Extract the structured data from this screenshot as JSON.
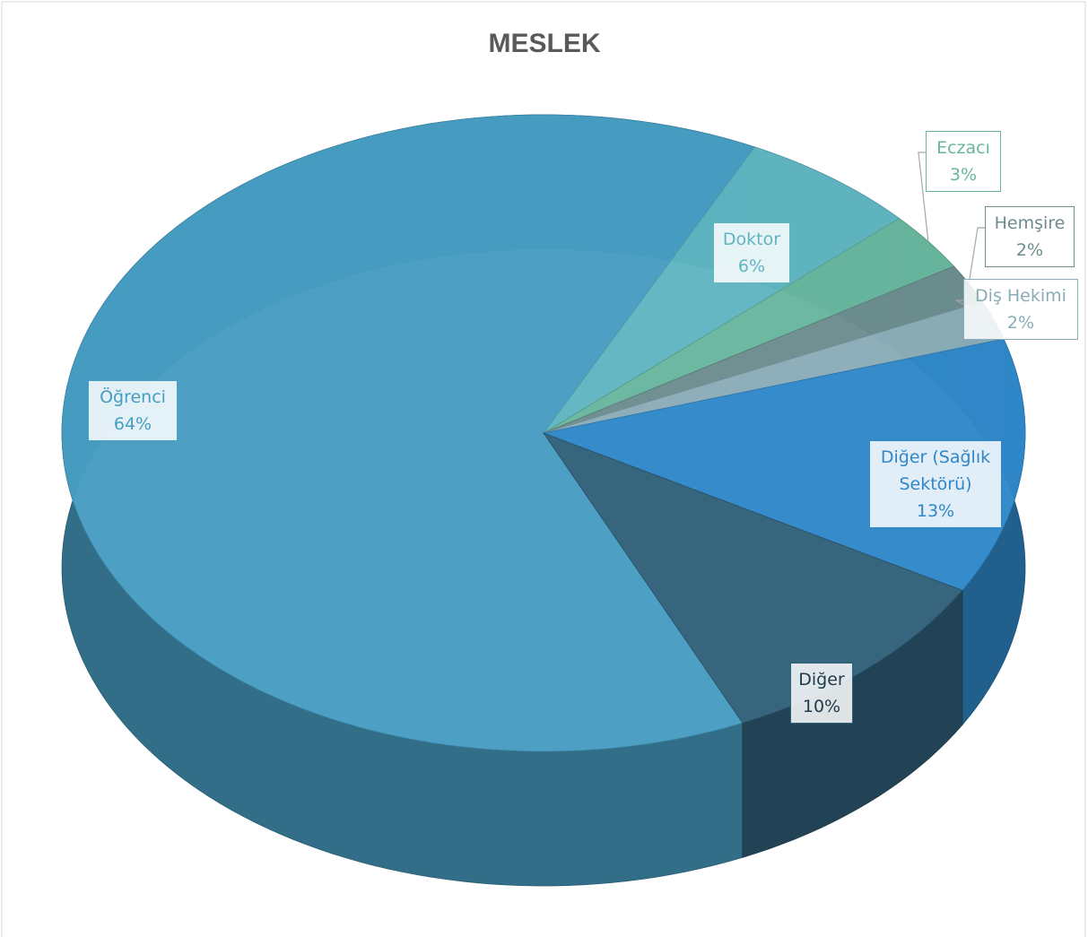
{
  "chart_data": {
    "type": "pie",
    "title": "MESLEK",
    "categories": [
      "Öğrenci",
      "Doktor",
      "Eczacı",
      "Hemşire",
      "Diş Hekimi",
      "Diğer (Sağlık Sektörü)",
      "Diğer"
    ],
    "values": [
      64,
      6,
      3,
      2,
      2,
      13,
      10
    ],
    "value_labels": [
      "64%",
      "6%",
      "3%",
      "2%",
      "2%",
      "13%",
      "10%"
    ],
    "colors": [
      "#479dc2",
      "#5fb5c1",
      "#68b69e",
      "#6c8c8d",
      "#8aacb7",
      "#2f87c9",
      "#2f6079"
    ]
  }
}
